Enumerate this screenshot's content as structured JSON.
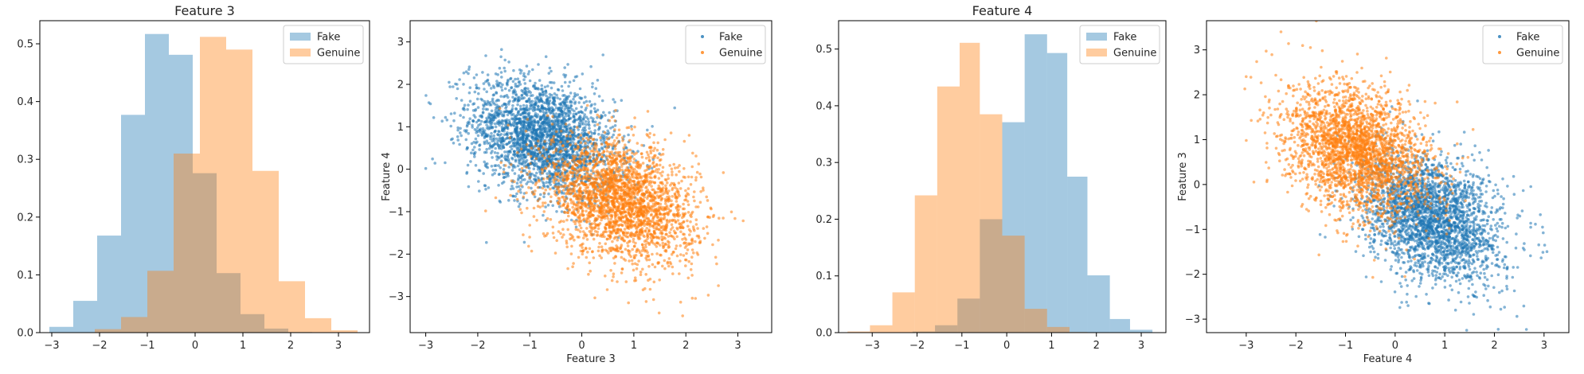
{
  "chart_data": [
    {
      "type": "histogram",
      "title": "Feature 3",
      "xlabel": "",
      "ylabel": "",
      "xlim": [
        -3.25,
        3.65
      ],
      "ylim": [
        0,
        0.54
      ],
      "xticks": [
        -3,
        -2,
        -1,
        0,
        1,
        2,
        3
      ],
      "yticks": [
        0.0,
        0.1,
        0.2,
        0.3,
        0.4,
        0.5
      ],
      "legend_position": "top-right",
      "series": [
        {
          "name": "Fake",
          "color": "#1f77b4",
          "alpha": 0.4,
          "bin_edges": [
            -3.05,
            -2.55,
            -2.05,
            -1.55,
            -1.05,
            -0.55,
            -0.05,
            0.45,
            0.95,
            1.45,
            1.95,
            2.45
          ],
          "values": [
            0.01,
            0.055,
            0.168,
            0.377,
            0.517,
            0.481,
            0.276,
            0.103,
            0.032,
            0.007,
            0.001
          ]
        },
        {
          "name": "Genuine",
          "color": "#ff7f0e",
          "alpha": 0.4,
          "bin_edges": [
            -2.1,
            -1.55,
            -1.0,
            -0.45,
            0.1,
            0.65,
            1.2,
            1.75,
            2.3,
            2.85,
            3.4
          ],
          "values": [
            0.006,
            0.027,
            0.107,
            0.31,
            0.512,
            0.49,
            0.28,
            0.089,
            0.025,
            0.004
          ]
        }
      ]
    },
    {
      "type": "scatter",
      "title": "",
      "xlabel": "Feature 3",
      "ylabel": "Feature 4",
      "xlim": [
        -3.3,
        3.65
      ],
      "ylim": [
        -3.85,
        3.5
      ],
      "xticks": [
        -3,
        -2,
        -1,
        0,
        1,
        2,
        3
      ],
      "yticks": [
        -3,
        -2,
        -1,
        0,
        1,
        2,
        3
      ],
      "legend_position": "top-right",
      "series": [
        {
          "name": "Fake",
          "color": "#1f77b4",
          "alpha": 0.55,
          "n": 2600,
          "mean": [
            -0.75,
            0.75
          ],
          "sd": [
            0.7,
            0.7
          ],
          "corr": -0.3
        },
        {
          "name": "Genuine",
          "color": "#ff7f0e",
          "alpha": 0.55,
          "n": 2600,
          "mean": [
            0.75,
            -0.75
          ],
          "sd": [
            0.72,
            0.72
          ],
          "corr": -0.3
        }
      ]
    },
    {
      "type": "histogram",
      "title": "Feature 4",
      "xlabel": "",
      "ylabel": "",
      "xlim": [
        -3.75,
        3.55
      ],
      "ylim": [
        0,
        0.55
      ],
      "xticks": [
        -3,
        -2,
        -1,
        0,
        1,
        2,
        3
      ],
      "yticks": [
        0.0,
        0.1,
        0.2,
        0.3,
        0.4,
        0.5
      ],
      "legend_position": "top-right",
      "series": [
        {
          "name": "Fake",
          "color": "#1f77b4",
          "alpha": 0.4,
          "bin_edges": [
            -2.1,
            -1.6,
            -1.1,
            -0.6,
            -0.1,
            0.4,
            0.9,
            1.35,
            1.8,
            2.3,
            2.75,
            3.25
          ],
          "values": [
            0.002,
            0.013,
            0.06,
            0.2,
            0.371,
            0.526,
            0.493,
            0.275,
            0.101,
            0.024,
            0.005
          ]
        },
        {
          "name": "Genuine",
          "color": "#ff7f0e",
          "alpha": 0.4,
          "bin_edges": [
            -3.55,
            -3.05,
            -2.55,
            -2.05,
            -1.55,
            -1.05,
            -0.6,
            -0.1,
            0.4,
            0.9,
            1.4,
            1.8
          ],
          "values": [
            0.002,
            0.013,
            0.071,
            0.242,
            0.434,
            0.511,
            0.385,
            0.171,
            0.042,
            0.01,
            0.001
          ]
        }
      ]
    },
    {
      "type": "scatter",
      "title": "",
      "xlabel": "Feature 4",
      "ylabel": "Feature 3",
      "xlim": [
        -3.8,
        3.5
      ],
      "ylim": [
        -3.3,
        3.65
      ],
      "xticks": [
        -3,
        -2,
        -1,
        0,
        1,
        2,
        3
      ],
      "yticks": [
        -3,
        -2,
        -1,
        0,
        1,
        2,
        3
      ],
      "legend_position": "top-right",
      "series": [
        {
          "name": "Fake",
          "color": "#1f77b4",
          "alpha": 0.55,
          "n": 2600,
          "mean": [
            0.75,
            -0.75
          ],
          "sd": [
            0.7,
            0.7
          ],
          "corr": -0.3
        },
        {
          "name": "Genuine",
          "color": "#ff7f0e",
          "alpha": 0.55,
          "n": 2600,
          "mean": [
            -0.75,
            0.75
          ],
          "sd": [
            0.72,
            0.72
          ],
          "corr": -0.3
        }
      ]
    }
  ]
}
